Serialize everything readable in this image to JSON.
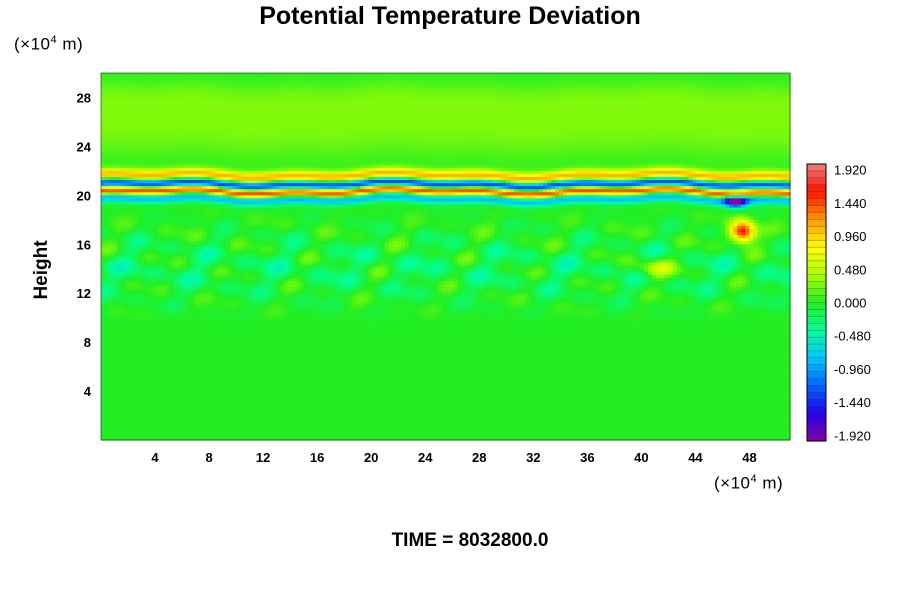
{
  "chart_data": {
    "type": "heatmap",
    "title": "Potential Temperature Deviation",
    "ylabel": "Height",
    "x_unit": "(×10⁴ m)",
    "y_unit": "(×10⁴ m)",
    "x_unit_prefix": "(×10",
    "x_unit_exp": "4",
    "x_unit_suffix": " m)",
    "y_unit_prefix": "(×10",
    "y_unit_exp": "4",
    "y_unit_suffix": " m)",
    "xlim": [
      0,
      51
    ],
    "ylim": [
      0,
      30
    ],
    "x_ticks": [
      4,
      8,
      12,
      16,
      20,
      24,
      28,
      32,
      36,
      40,
      44,
      48
    ],
    "y_ticks": [
      4,
      8,
      12,
      16,
      20,
      24,
      28
    ],
    "x_tick_labels": [
      "4",
      "8",
      "12",
      "16",
      "20",
      "24",
      "28",
      "32",
      "36",
      "40",
      "44",
      "48"
    ],
    "y_tick_labels": [
      "4",
      "8",
      "12",
      "16",
      "20",
      "24",
      "28"
    ],
    "colorbar": {
      "range": [
        -2.0,
        2.0
      ],
      "tick_values": [
        1.92,
        1.44,
        0.96,
        0.48,
        0.0,
        -0.48,
        -0.96,
        -1.44,
        -1.92
      ],
      "tick_labels": [
        "1.920",
        "1.440",
        "0.960",
        "0.480",
        "0.000",
        "-0.480",
        "-0.960",
        "-1.440",
        "-1.920"
      ],
      "stops": [
        {
          "v": -2.0,
          "color": "#8800aa"
        },
        {
          "v": -1.6,
          "color": "#2200ee"
        },
        {
          "v": -1.2,
          "color": "#0066ff"
        },
        {
          "v": -0.8,
          "color": "#00c8ff"
        },
        {
          "v": -0.4,
          "color": "#00ff9a"
        },
        {
          "v": 0.0,
          "color": "#22ee22"
        },
        {
          "v": 0.4,
          "color": "#b0ff00"
        },
        {
          "v": 0.8,
          "color": "#ffff00"
        },
        {
          "v": 1.2,
          "color": "#ff9900"
        },
        {
          "v": 1.6,
          "color": "#ff1100"
        },
        {
          "v": 2.0,
          "color": "#f08080"
        }
      ]
    },
    "field_features": [
      {
        "kind": "band",
        "y": 21.6,
        "amplitude": 1.1,
        "thickness": 0.45
      },
      {
        "kind": "band",
        "y": 20.9,
        "amplitude": -1.5,
        "thickness": 0.35
      },
      {
        "kind": "band",
        "y": 20.3,
        "amplitude": 1.6,
        "thickness": 0.35
      },
      {
        "kind": "band",
        "y": 19.7,
        "amplitude": -0.9,
        "thickness": 0.4
      },
      {
        "kind": "band",
        "y": 25.5,
        "amplitude": 0.25,
        "thickness": 2.5
      },
      {
        "kind": "band",
        "y": 28.0,
        "amplitude": 0.15,
        "thickness": 1.5
      },
      {
        "kind": "blob",
        "x": 47.5,
        "y": 17.0,
        "amplitude": 1.8,
        "rx": 0.9,
        "ry": 0.9
      },
      {
        "kind": "blob",
        "x": 47.0,
        "y": 19.5,
        "amplitude": -1.6,
        "rx": 0.8,
        "ry": 0.5
      },
      {
        "kind": "blob",
        "x": 41.0,
        "y": 14.0,
        "amplitude": 0.6,
        "rx": 1.5,
        "ry": 0.8
      }
    ],
    "time_label": "TIME = 8032800.0"
  }
}
